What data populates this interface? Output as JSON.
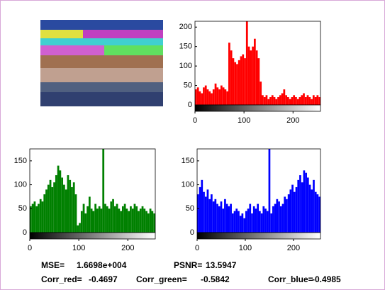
{
  "chart_data": [
    {
      "type": "histogram",
      "color": "#ff0000",
      "bins": [
        0,
        4,
        8,
        12,
        16,
        20,
        24,
        28,
        32,
        36,
        40,
        44,
        48,
        52,
        56,
        60,
        64,
        68,
        72,
        76,
        80,
        84,
        88,
        92,
        96,
        100,
        104,
        108,
        112,
        116,
        120,
        124,
        128,
        132,
        136,
        140,
        144,
        148,
        152,
        156,
        160,
        164,
        168,
        172,
        176,
        180,
        184,
        188,
        192,
        196,
        200,
        204,
        208,
        212,
        216,
        220,
        224,
        228,
        232,
        236,
        240,
        244,
        248,
        252,
        256
      ],
      "values": [
        40,
        45,
        35,
        30,
        45,
        50,
        40,
        35,
        30,
        40,
        55,
        45,
        40,
        50,
        45,
        40,
        35,
        160,
        140,
        120,
        110,
        105,
        115,
        125,
        130,
        120,
        215,
        150,
        140,
        150,
        170,
        140,
        120,
        60,
        25,
        20,
        25,
        15,
        20,
        25,
        20,
        15,
        20,
        25,
        30,
        40,
        25,
        20,
        15,
        20,
        25,
        20,
        15,
        20,
        25,
        30,
        20,
        25,
        20,
        15,
        25,
        20,
        25,
        20
      ],
      "xlim": [
        0,
        256
      ],
      "xticks": [
        0,
        100,
        200
      ],
      "ylim": [
        0,
        215
      ],
      "yticks": [
        0,
        50,
        100,
        150,
        200
      ]
    },
    {
      "type": "histogram",
      "color": "#008000",
      "bins": [
        0,
        4,
        8,
        12,
        16,
        20,
        24,
        28,
        32,
        36,
        40,
        44,
        48,
        52,
        56,
        60,
        64,
        68,
        72,
        76,
        80,
        84,
        88,
        92,
        96,
        100,
        104,
        108,
        112,
        116,
        120,
        124,
        128,
        132,
        136,
        140,
        144,
        148,
        152,
        156,
        160,
        164,
        168,
        172,
        176,
        180,
        184,
        188,
        192,
        196,
        200,
        204,
        208,
        212,
        216,
        220,
        224,
        228,
        232,
        236,
        240,
        244,
        248,
        252,
        256
      ],
      "values": [
        55,
        60,
        65,
        55,
        60,
        70,
        65,
        80,
        90,
        100,
        110,
        95,
        105,
        120,
        140,
        130,
        115,
        100,
        90,
        120,
        110,
        95,
        105,
        80,
        15,
        20,
        45,
        60,
        40,
        55,
        75,
        50,
        45,
        60,
        50,
        55,
        50,
        175,
        60,
        55,
        50,
        65,
        70,
        55,
        60,
        50,
        45,
        55,
        60,
        50,
        45,
        55,
        50,
        60,
        55,
        45,
        50,
        55,
        50,
        45,
        40,
        50,
        45,
        40
      ],
      "xlim": [
        0,
        256
      ],
      "xticks": [
        0,
        100,
        200
      ],
      "ylim": [
        0,
        175
      ],
      "yticks": [
        0,
        50,
        100,
        150
      ]
    },
    {
      "type": "histogram",
      "color": "#0000ff",
      "bins": [
        0,
        4,
        8,
        12,
        16,
        20,
        24,
        28,
        32,
        36,
        40,
        44,
        48,
        52,
        56,
        60,
        64,
        68,
        72,
        76,
        80,
        84,
        88,
        92,
        96,
        100,
        104,
        108,
        112,
        116,
        120,
        124,
        128,
        132,
        136,
        140,
        144,
        148,
        152,
        156,
        160,
        164,
        168,
        172,
        176,
        180,
        184,
        188,
        192,
        196,
        200,
        204,
        208,
        212,
        216,
        220,
        224,
        228,
        232,
        236,
        240,
        244,
        248,
        252,
        256
      ],
      "values": [
        80,
        95,
        110,
        85,
        75,
        90,
        70,
        80,
        65,
        70,
        60,
        55,
        65,
        50,
        70,
        60,
        55,
        60,
        40,
        45,
        50,
        45,
        35,
        40,
        30,
        45,
        50,
        60,
        40,
        55,
        50,
        60,
        45,
        40,
        55,
        50,
        45,
        175,
        40,
        55,
        60,
        70,
        65,
        55,
        60,
        75,
        70,
        80,
        90,
        100,
        85,
        95,
        110,
        120,
        105,
        130,
        125,
        115,
        100,
        90,
        110,
        85,
        80,
        75
      ],
      "xlim": [
        0,
        256
      ],
      "xticks": [
        0,
        100,
        200
      ],
      "ylim": [
        0,
        175
      ],
      "yticks": [
        0,
        50,
        100,
        150
      ]
    }
  ],
  "metrics": [
    {
      "label": "MSE=",
      "value": "1.6698e+004"
    },
    {
      "label": "PSNR=",
      "value": "13.5947"
    },
    {
      "label": "Corr_red=",
      "value": "-0.4697"
    },
    {
      "label": "Corr_green=",
      "value": "-0.5842"
    },
    {
      "label": "Corr_blue=",
      "value": "-0.4985"
    }
  ]
}
